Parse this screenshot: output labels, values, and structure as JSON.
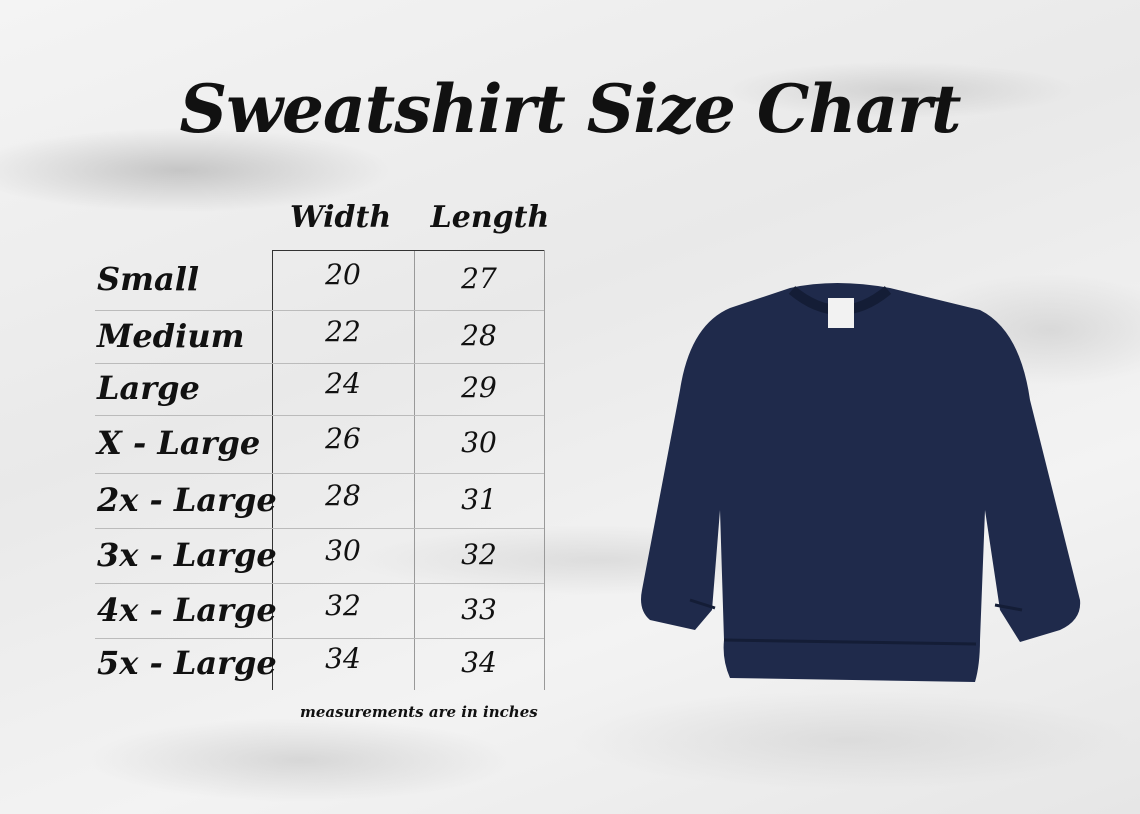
{
  "title": "Sweatshirt Size Chart",
  "table": {
    "headers": [
      "Width",
      "Length"
    ],
    "rows": [
      {
        "size": "Small",
        "width": "20",
        "length": "27"
      },
      {
        "size": "Medium",
        "width": "22",
        "length": "28"
      },
      {
        "size": "Large",
        "width": "24",
        "length": "29"
      },
      {
        "size": "X - Large",
        "width": "26",
        "length": "30"
      },
      {
        "size": "2x - Large",
        "width": "28",
        "length": "31"
      },
      {
        "size": "3x - Large",
        "width": "30",
        "length": "32"
      },
      {
        "size": "4x - Large",
        "width": "32",
        "length": "33"
      },
      {
        "size": "5x - Large",
        "width": "34",
        "length": "34"
      }
    ]
  },
  "note": "measurements are in inches",
  "colors": {
    "shirt": "#1f2a4b",
    "text": "#111111"
  }
}
